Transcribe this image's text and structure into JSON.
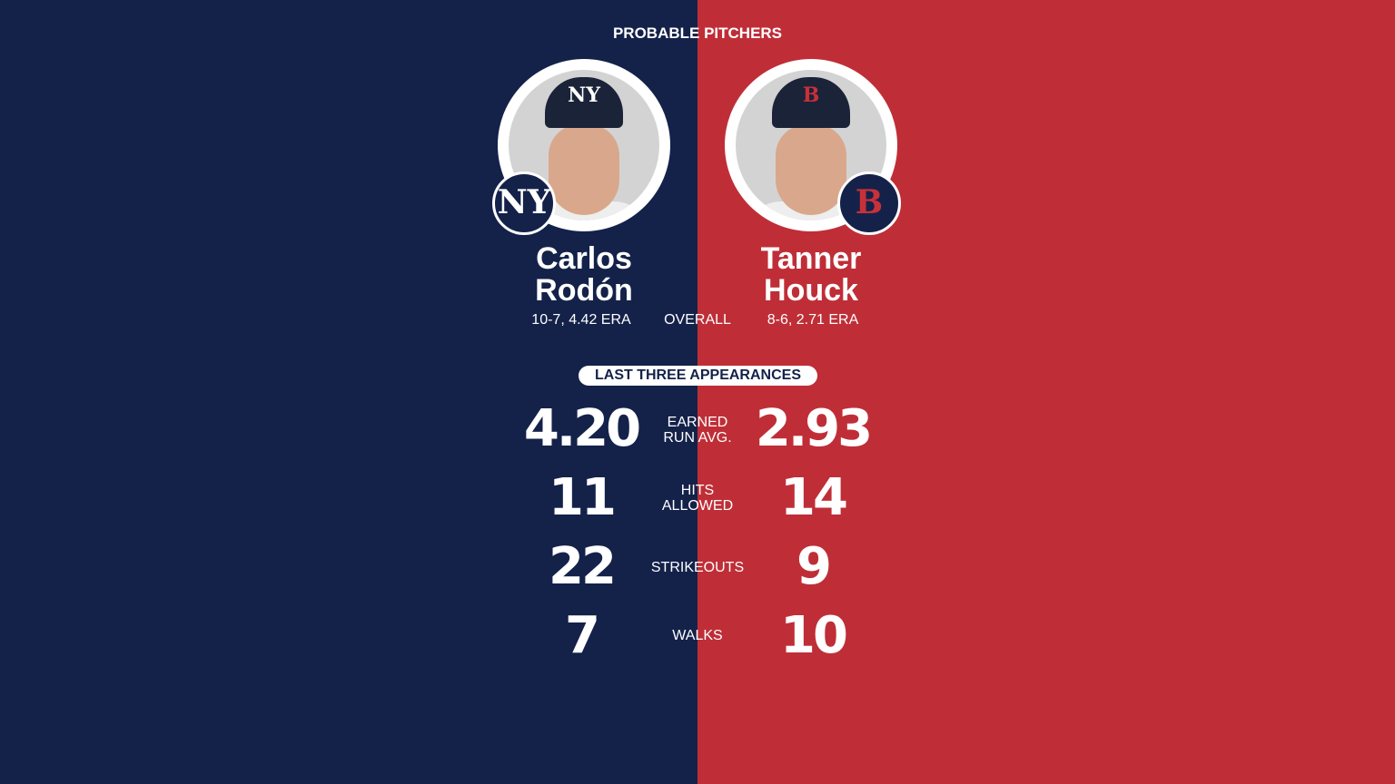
{
  "header": {
    "title": "PROBABLE PITCHERS"
  },
  "colors": {
    "yankees": "#14224a",
    "red_sox": "#bf2e37"
  },
  "away": {
    "first": "Carlos",
    "last": "Rodón",
    "overall": "10-7, 4.42 ERA",
    "logo": "NY",
    "cap_logo": "NY",
    "team_icon": "yankees-logo"
  },
  "home": {
    "first": "Tanner",
    "last": "Houck",
    "overall": "8-6, 2.71 ERA",
    "logo": "B",
    "cap_logo": "B",
    "team_icon": "red-sox-logo"
  },
  "overall_label": "OVERALL",
  "section_label": "LAST THREE APPEARANCES",
  "stats": [
    {
      "label1": "EARNED",
      "label2": "RUN AVG.",
      "away": "4.20",
      "home": "2.93"
    },
    {
      "label1": "HITS",
      "label2": "ALLOWED",
      "away": "11",
      "home": "14"
    },
    {
      "label1": "STRIKEOUTS",
      "label2": "",
      "away": "22",
      "home": "9"
    },
    {
      "label1": "WALKS",
      "label2": "",
      "away": "7",
      "home": "10"
    }
  ]
}
